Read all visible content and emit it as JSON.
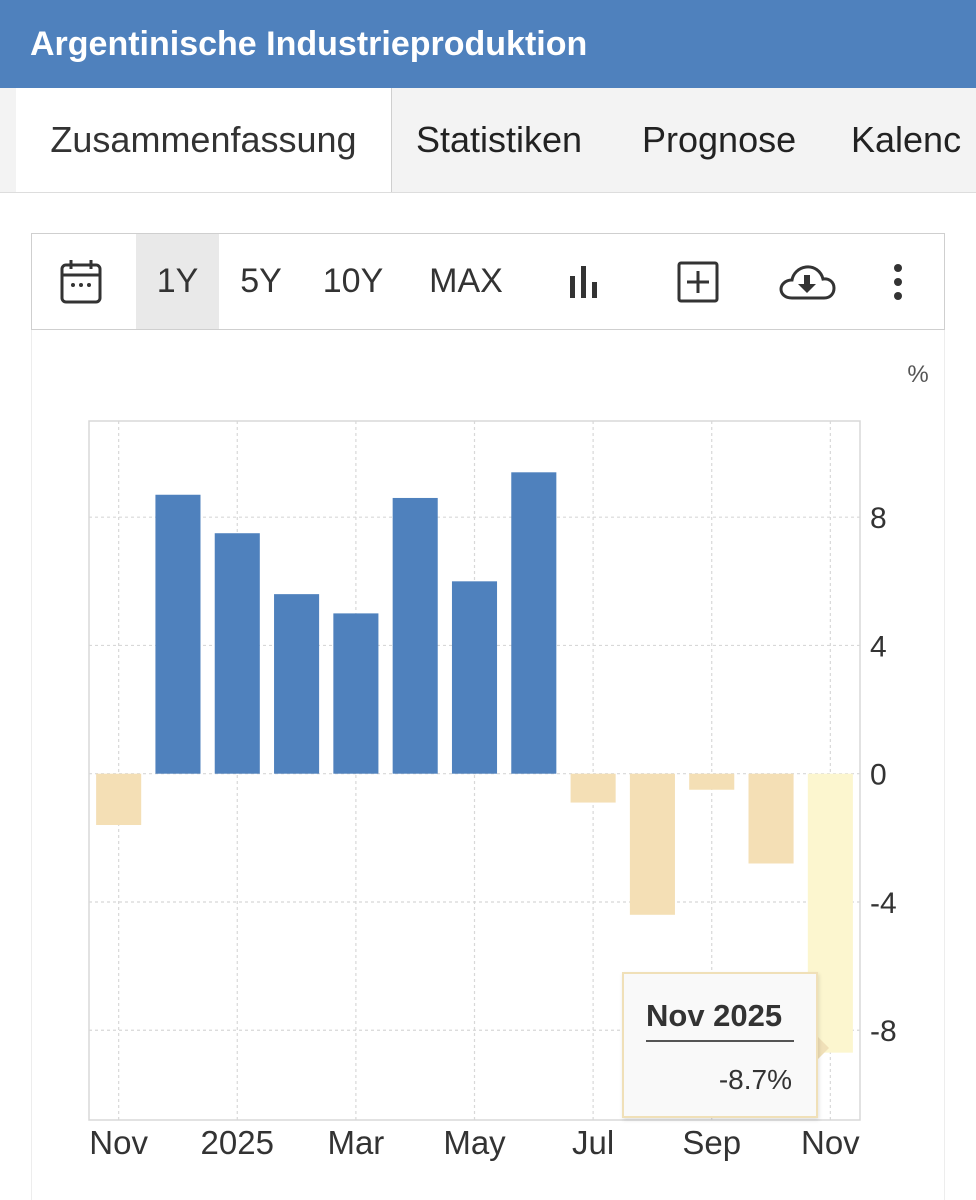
{
  "header": {
    "title": "Argentinische Industrieproduktion"
  },
  "tabs": [
    {
      "label": "Zusammenfassung",
      "active": true
    },
    {
      "label": "Statistiken"
    },
    {
      "label": "Prognose"
    },
    {
      "label": "Kalenc"
    }
  ],
  "toolbar": {
    "icons": [
      "calendar-icon",
      "bar-chart-icon",
      "add-box-icon",
      "cloud-download-icon",
      "more-vertical-icon"
    ],
    "ranges": [
      {
        "label": "1Y",
        "selected": true
      },
      {
        "label": "5Y"
      },
      {
        "label": "10Y"
      },
      {
        "label": "MAX"
      }
    ]
  },
  "tooltip": {
    "title": "Nov 2025",
    "value": "-8.7%"
  },
  "chart_data": {
    "type": "bar",
    "unit_label": "%",
    "categories": [
      "Nov 2024",
      "Dez 2024",
      "Jan 2025",
      "Feb 2025",
      "Mär 2025",
      "Apr 2025",
      "Mai 2025",
      "Jun 2025",
      "Jul 2025",
      "Aug 2025",
      "Sep 2025",
      "Okt 2025",
      "Nov 2025"
    ],
    "values": [
      -1.6,
      8.7,
      7.5,
      5.6,
      5.0,
      8.6,
      6.0,
      9.4,
      -0.9,
      -4.4,
      -0.5,
      -2.8,
      -8.7
    ],
    "x_tick_labels": [
      "Nov",
      "2025",
      "Mar",
      "May",
      "Jul",
      "Sep",
      "Nov"
    ],
    "y_ticks": [
      8,
      4,
      0,
      -4,
      -8
    ],
    "ylim": [
      -10.8,
      11.0
    ],
    "grid": true,
    "highlighted": "Nov 2025",
    "colors": {
      "positive": "#4f81bd",
      "negative": "#f4dfb5",
      "highlight": "#fcf6cf",
      "grid": "#d8d8d8"
    }
  }
}
